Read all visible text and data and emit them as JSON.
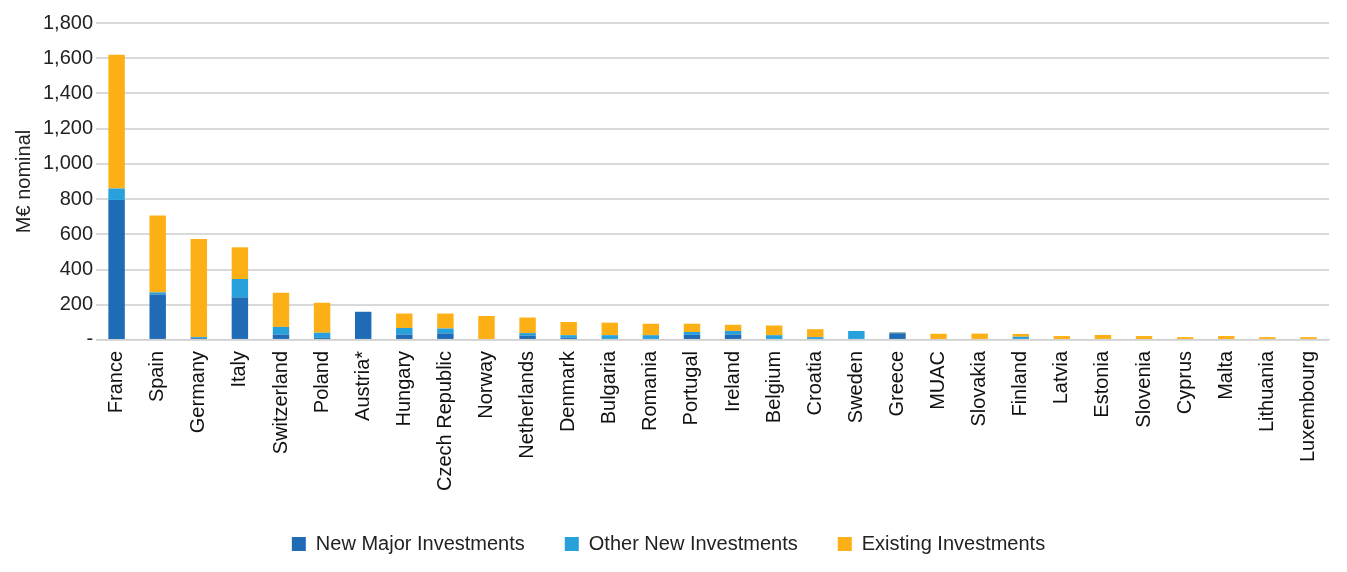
{
  "chart_data": {
    "type": "bar",
    "stacked": true,
    "ylabel": "M€ nominal",
    "categories": [
      "France",
      "Spain",
      "Germany",
      "Italy",
      "Switzerland",
      "Poland",
      "Austria*",
      "Hungary",
      "Czech Republic",
      "Norway",
      "Netherlands",
      "Denmark",
      "Bulgaria",
      "Romania",
      "Portugal",
      "Ireland",
      "Belgium",
      "Croatia",
      "Sweden",
      "Greece",
      "MUAC",
      "Slovakia",
      "Finland",
      "Latvia",
      "Estonia",
      "Slovenia",
      "Cyprus",
      "Malta",
      "Lithuania",
      "Luxembourg"
    ],
    "series": [
      {
        "name": "New Major Investments",
        "color": "#1f6bb5",
        "values": [
          795,
          258,
          10,
          242,
          31,
          12,
          160,
          31,
          37,
          0,
          25,
          12,
          0,
          0,
          29,
          31,
          0,
          0,
          0,
          38,
          0,
          0,
          0,
          0,
          0,
          0,
          0,
          0,
          0,
          0
        ]
      },
      {
        "name": "Other New Investments",
        "color": "#28a0dc",
        "values": [
          65,
          12,
          6,
          104,
          43,
          29,
          0,
          37,
          28,
          null,
          14,
          15,
          27,
          27,
          16,
          20,
          27,
          16,
          51,
          4,
          null,
          0,
          18,
          null,
          0,
          0,
          null,
          0,
          0,
          0
        ]
      },
      {
        "name": "Existing Investments",
        "color": "#fdb016",
        "values": [
          760,
          436,
          557,
          180,
          194,
          170,
          0,
          82,
          85,
          136,
          88,
          75,
          71,
          65,
          47,
          35,
          55,
          45,
          0,
          3,
          35,
          36,
          16,
          22,
          28,
          22,
          16,
          22,
          16,
          16
        ]
      }
    ],
    "ylim": [
      0,
      1800
    ],
    "yticks": [
      {
        "value": 0,
        "label": "-"
      },
      {
        "value": 200,
        "label": "200"
      },
      {
        "value": 400,
        "label": "400"
      },
      {
        "value": 600,
        "label": "600"
      },
      {
        "value": 800,
        "label": "800"
      },
      {
        "value": 1000,
        "label": "1,000"
      },
      {
        "value": 1200,
        "label": "1,200"
      },
      {
        "value": 1400,
        "label": "1,400"
      },
      {
        "value": 1600,
        "label": "1,600"
      },
      {
        "value": 1800,
        "label": "1,800"
      }
    ],
    "grid": "y",
    "legend": "bottom"
  }
}
